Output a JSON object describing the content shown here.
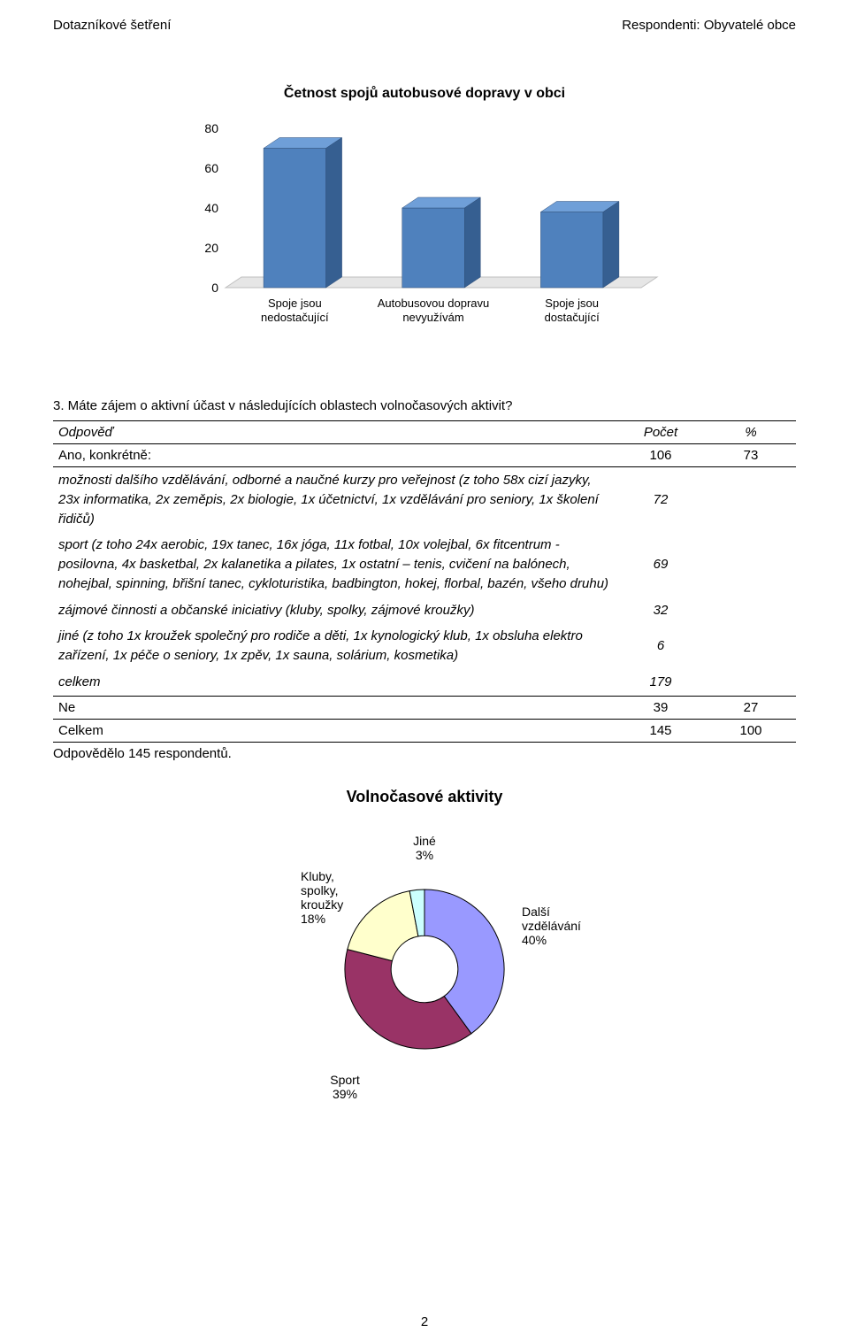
{
  "header": {
    "left": "Dotazníkové šetření",
    "right": "Respondenti: Obyvatelé obce"
  },
  "page_number": "2",
  "chart1": {
    "type": "bar-3d",
    "title": "Četnost spojů autobusové dopravy v obci",
    "categories": [
      "Spoje jsou nedostačující",
      "Autobusovou dopravu nevyužívám",
      "Spoje jsou dostačující"
    ],
    "values": [
      70,
      40,
      38
    ],
    "ylim": [
      0,
      80
    ],
    "ytick_step": 20,
    "bar_color": "#4f81bd",
    "bar_top_color": "#6f9fd8",
    "bar_side_color": "#365f91",
    "floor_color": "#e6e6e6",
    "floor_border": "#bfbfbf",
    "axis_label_color": "#000000",
    "tick_fontsize": 14,
    "label_fontsize": 13
  },
  "question3": {
    "title": "3. Máte zájem o aktivní účast v následujících oblastech volnočasových aktivit?",
    "head_answer": "Odpověď",
    "head_count": "Počet",
    "head_pct": "%",
    "ano_label": "Ano, konkrétně:",
    "ano_count": "106",
    "ano_pct": "73",
    "r1_text": "možnosti dalšího vzdělávání, odborné a naučné kurzy pro veřejnost (z toho 58x cizí jazyky, 23x informatika, 2x zeměpis, 2x biologie, 1x účetnictví, 1x vzdělávání pro seniory, 1x školení řidičů)",
    "r1_count": "72",
    "r2_text": "sport (z toho 24x aerobic, 19x tanec, 16x jóga, 11x fotbal, 10x volejbal, 6x fitcentrum - posilovna, 4x basketbal, 2x kalanetika a pilates, 1x ostatní – tenis, cvičení na balónech, nohejbal, spinning, břišní tanec, cykloturistika, badbington, hokej, florbal, bazén, všeho druhu)",
    "r2_count": "69",
    "r3_text": "zájmové činnosti a občanské iniciativy (kluby, spolky, zájmové kroužky)",
    "r3_count": "32",
    "r4_text": "jiné (z toho 1x kroužek společný pro rodiče a děti, 1x kynologický klub, 1x obsluha elektro zařízení, 1x péče o seniory, 1x zpěv, 1x sauna, solárium, kosmetika)",
    "r4_count": "6",
    "celkem_sub_label": "celkem",
    "celkem_sub_count": "179",
    "ne_label": "Ne",
    "ne_count": "39",
    "ne_pct": "27",
    "celkem_label": "Celkem",
    "celkem_count": "145",
    "celkem_pct": "100",
    "footer": "Odpovědělo 145 respondentů."
  },
  "chart2": {
    "type": "doughnut",
    "title": "Volnočasové aktivity",
    "slices": [
      {
        "label_line1": "Další",
        "label_line2": "vzdělávání",
        "pct_label": "40%",
        "pct": 40,
        "color": "#9999ff"
      },
      {
        "label_line1": "Sport",
        "label_line2": "",
        "pct_label": "39%",
        "pct": 39,
        "color": "#993366"
      },
      {
        "label_line1": "Kluby,",
        "label_line2": "spolky,",
        "label_line3": "kroužky",
        "pct_label": "18%",
        "pct": 18,
        "color": "#ffffcc"
      },
      {
        "label_line1": "Jiné",
        "label_line2": "",
        "pct_label": "3%",
        "pct": 3,
        "color": "#ccffff"
      }
    ],
    "slice_border": "#000000",
    "inner_radius_ratio": 0.42,
    "label_fontsize": 14
  }
}
